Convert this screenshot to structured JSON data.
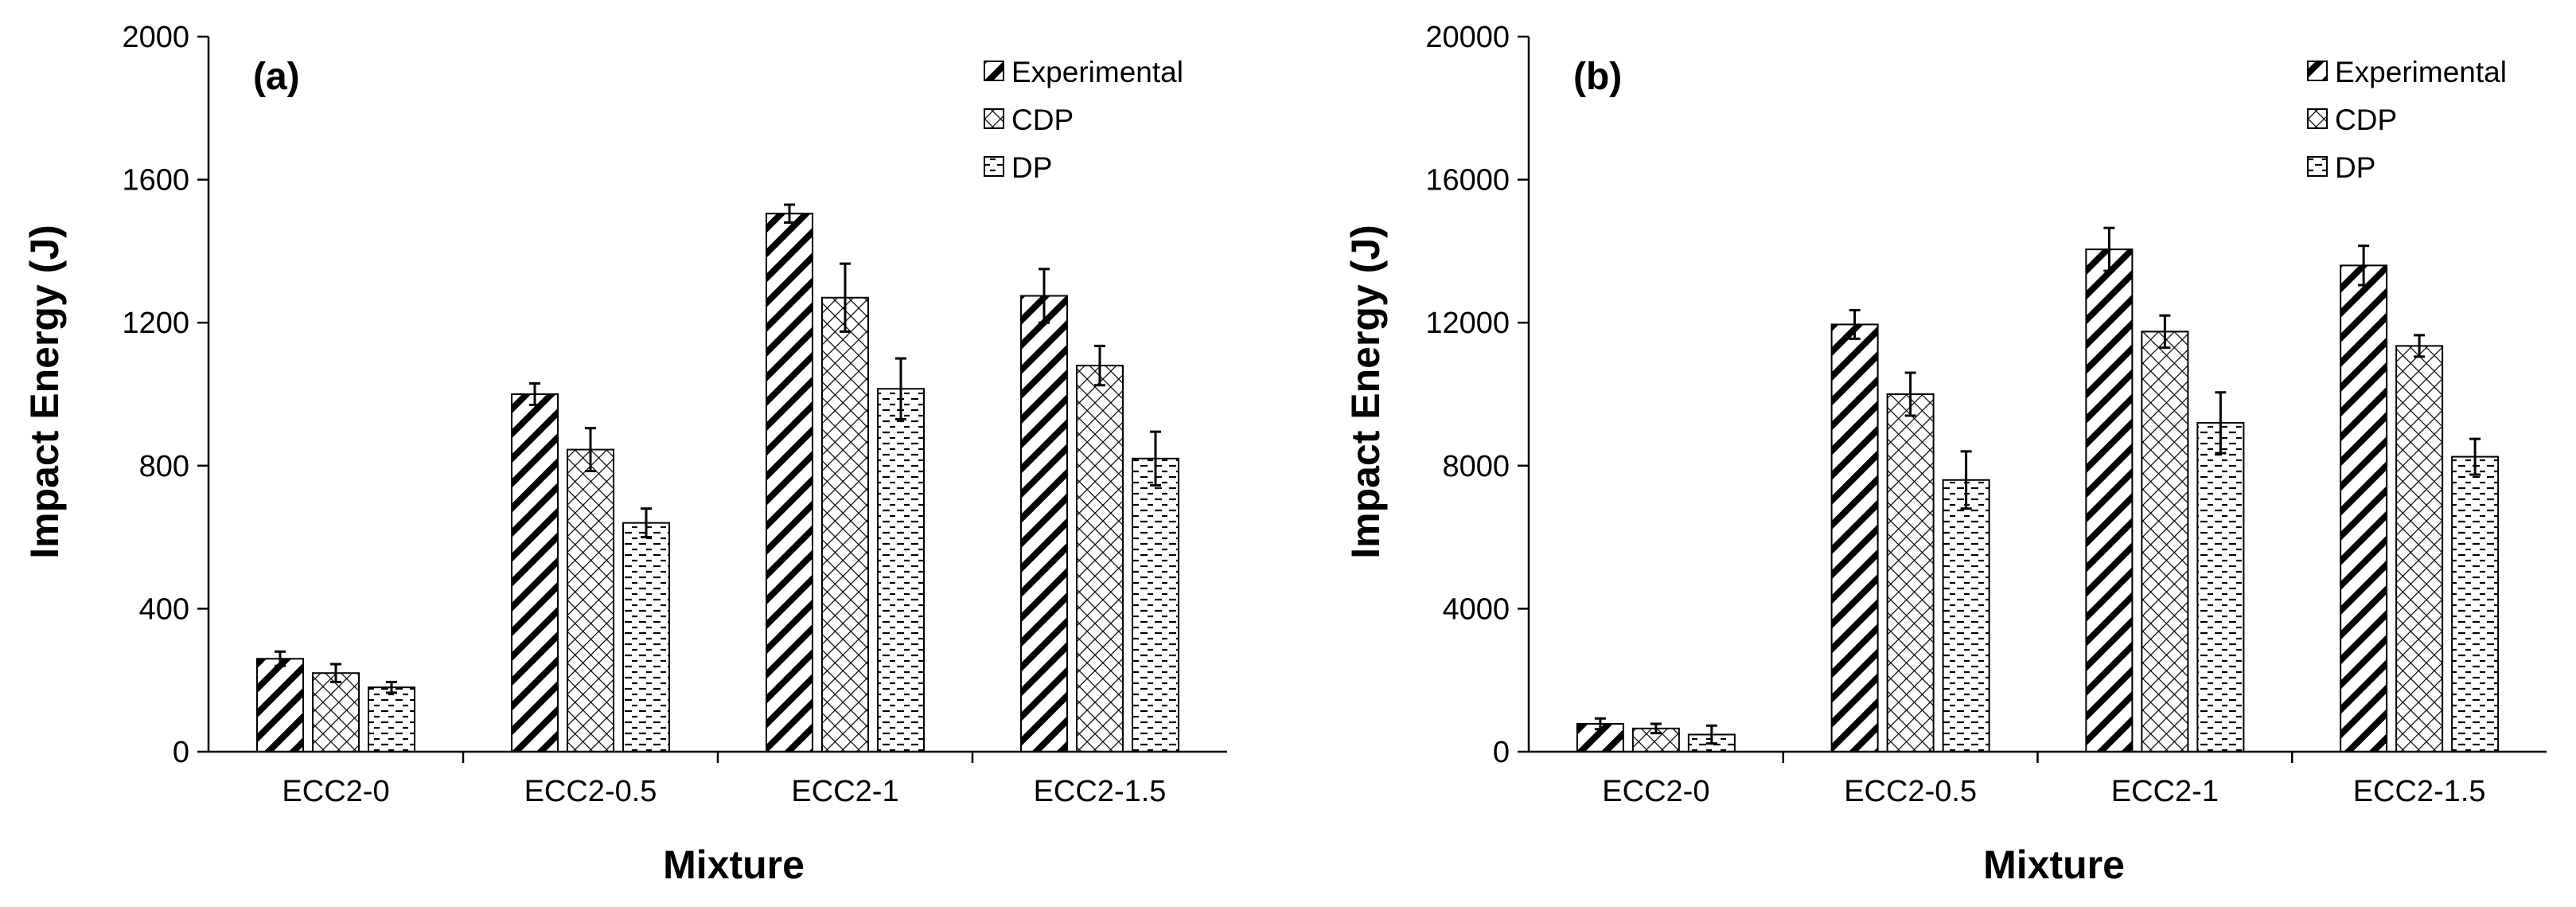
{
  "chart_data": [
    {
      "type": "bar",
      "panel_label": "(a)",
      "categories": [
        "ECC2-0",
        "ECC2-0.5",
        "ECC2-1",
        "ECC2-1.5"
      ],
      "series": [
        {
          "name": "Experimental",
          "pattern": "diagonal-stripes",
          "values": [
            260,
            1000,
            1505,
            1275
          ],
          "errors": [
            20,
            30,
            25,
            75
          ]
        },
        {
          "name": "CDP",
          "pattern": "crosshatch",
          "values": [
            220,
            845,
            1270,
            1080
          ],
          "errors": [
            25,
            60,
            95,
            55
          ]
        },
        {
          "name": "DP",
          "pattern": "dashes",
          "values": [
            180,
            640,
            1015,
            820
          ],
          "errors": [
            15,
            40,
            85,
            75
          ]
        }
      ],
      "xlabel": "Mixture",
      "ylabel": "Impact Energy (J)",
      "ylim": [
        0,
        2000
      ],
      "yticks": [
        0,
        400,
        800,
        1200,
        1600,
        2000
      ],
      "ytick_labels": [
        "0",
        "400",
        "800",
        "1200",
        "1600",
        "2000"
      ],
      "legend_position": "top-right"
    },
    {
      "type": "bar",
      "panel_label": "(b)",
      "categories": [
        "ECC2-0",
        "ECC2-0.5",
        "ECC2-1",
        "ECC2-1.5"
      ],
      "series": [
        {
          "name": "Experimental",
          "pattern": "diagonal-stripes",
          "values": [
            780,
            11950,
            14050,
            13600
          ],
          "errors": [
            150,
            400,
            600,
            550
          ]
        },
        {
          "name": "CDP",
          "pattern": "crosshatch",
          "values": [
            650,
            10000,
            11750,
            11350
          ],
          "errors": [
            130,
            600,
            450,
            300
          ]
        },
        {
          "name": "DP",
          "pattern": "dashes",
          "values": [
            480,
            7600,
            9200,
            8250
          ],
          "errors": [
            250,
            800,
            850,
            500
          ]
        }
      ],
      "xlabel": "Mixture",
      "ylabel": "Impact Energy (J)",
      "ylim": [
        0,
        20000
      ],
      "yticks": [
        0,
        4000,
        8000,
        12000,
        16000,
        20000
      ],
      "ytick_labels": [
        "0",
        "4000",
        "8000",
        "12000",
        "16000",
        "20000"
      ],
      "legend_position": "top-right"
    }
  ]
}
